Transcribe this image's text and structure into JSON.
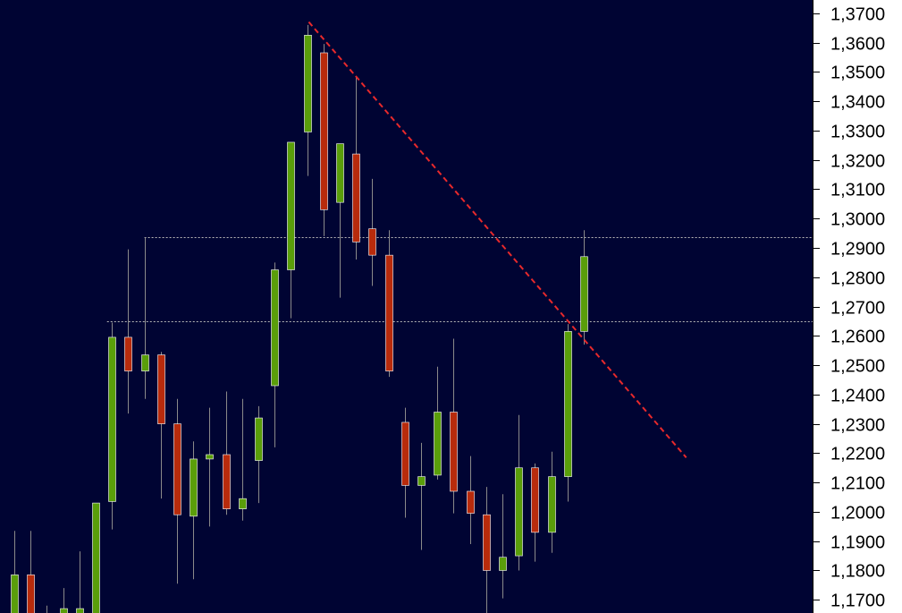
{
  "chart_data": {
    "type": "candlestick",
    "title": "",
    "xlabel": "",
    "ylabel": "",
    "ylim": [
      1.1655,
      1.3745
    ],
    "y_ticks": [
      "1,3700",
      "1,3600",
      "1,3500",
      "1,3400",
      "1,3300",
      "1,3200",
      "1,3100",
      "1,3000",
      "1,2900",
      "1,2800",
      "1,2700",
      "1,2600",
      "1,2500",
      "1,2400",
      "1,2300",
      "1,2200",
      "1,2100",
      "1,2000",
      "1,1900",
      "1,1800",
      "1,1700"
    ],
    "y_tick_values": [
      1.37,
      1.36,
      1.35,
      1.34,
      1.33,
      1.32,
      1.31,
      1.3,
      1.29,
      1.28,
      1.27,
      1.26,
      1.25,
      1.24,
      1.23,
      1.22,
      1.21,
      1.2,
      1.19,
      1.18,
      1.17
    ],
    "grid": false,
    "colors": {
      "background": "#000433",
      "bull": "#5a9e0a",
      "bear": "#b82b0c",
      "wick": "#8a8a8a",
      "trendline": "#e8292b",
      "level_line": "#b8b8b8",
      "axis_background": "#ffffff"
    },
    "candles": [
      {
        "open": 1.1645,
        "high": 1.1935,
        "low": 1.162,
        "close": 1.1785
      },
      {
        "open": 1.1785,
        "high": 1.1935,
        "low": 1.161,
        "close": 1.164
      },
      {
        "open": 1.161,
        "high": 1.168,
        "low": 1.158,
        "close": 1.1605
      },
      {
        "open": 1.164,
        "high": 1.174,
        "low": 1.16,
        "close": 1.167
      },
      {
        "open": 1.164,
        "high": 1.1865,
        "low": 1.16,
        "close": 1.167
      },
      {
        "open": 1.165,
        "high": 1.203,
        "low": 1.163,
        "close": 1.203
      },
      {
        "open": 1.2035,
        "high": 1.2645,
        "low": 1.194,
        "close": 1.2595
      },
      {
        "open": 1.2595,
        "high": 1.2895,
        "low": 1.2335,
        "close": 1.248
      },
      {
        "open": 1.248,
        "high": 1.2935,
        "low": 1.2385,
        "close": 1.2535
      },
      {
        "open": 1.2535,
        "high": 1.2545,
        "low": 1.2045,
        "close": 1.23
      },
      {
        "open": 1.23,
        "high": 1.2385,
        "low": 1.1755,
        "close": 1.199
      },
      {
        "open": 1.1985,
        "high": 1.224,
        "low": 1.177,
        "close": 1.218
      },
      {
        "open": 1.218,
        "high": 1.2355,
        "low": 1.195,
        "close": 1.2195
      },
      {
        "open": 1.2195,
        "high": 1.241,
        "low": 1.199,
        "close": 1.201
      },
      {
        "open": 1.201,
        "high": 1.2385,
        "low": 1.197,
        "close": 1.2045
      },
      {
        "open": 1.2175,
        "high": 1.236,
        "low": 1.203,
        "close": 1.232
      },
      {
        "open": 1.243,
        "high": 1.285,
        "low": 1.222,
        "close": 1.2825
      },
      {
        "open": 1.2825,
        "high": 1.3255,
        "low": 1.266,
        "close": 1.326
      },
      {
        "open": 1.3295,
        "high": 1.366,
        "low": 1.3145,
        "close": 1.3625
      },
      {
        "open": 1.3565,
        "high": 1.3595,
        "low": 1.294,
        "close": 1.303
      },
      {
        "open": 1.3055,
        "high": 1.3255,
        "low": 1.273,
        "close": 1.3255
      },
      {
        "open": 1.322,
        "high": 1.3485,
        "low": 1.286,
        "close": 1.292
      },
      {
        "open": 1.2965,
        "high": 1.3135,
        "low": 1.277,
        "close": 1.2875
      },
      {
        "open": 1.2875,
        "high": 1.296,
        "low": 1.246,
        "close": 1.248
      },
      {
        "open": 1.2305,
        "high": 1.2355,
        "low": 1.198,
        "close": 1.209
      },
      {
        "open": 1.209,
        "high": 1.2235,
        "low": 1.187,
        "close": 1.212
      },
      {
        "open": 1.2125,
        "high": 1.2495,
        "low": 1.211,
        "close": 1.234
      },
      {
        "open": 1.234,
        "high": 1.259,
        "low": 1.1995,
        "close": 1.207
      },
      {
        "open": 1.207,
        "high": 1.219,
        "low": 1.189,
        "close": 1.1995
      },
      {
        "open": 1.199,
        "high": 1.2085,
        "low": 1.161,
        "close": 1.18
      },
      {
        "open": 1.18,
        "high": 1.206,
        "low": 1.1705,
        "close": 1.1845
      },
      {
        "open": 1.185,
        "high": 1.233,
        "low": 1.18,
        "close": 1.215
      },
      {
        "open": 1.215,
        "high": 1.2165,
        "low": 1.183,
        "close": 1.193
      },
      {
        "open": 1.193,
        "high": 1.2205,
        "low": 1.186,
        "close": 1.212
      },
      {
        "open": 1.212,
        "high": 1.264,
        "low": 1.2035,
        "close": 1.2615
      },
      {
        "open": 1.2615,
        "high": 1.296,
        "low": 1.257,
        "close": 1.287
      }
    ],
    "trendline": {
      "from": {
        "index": 18.1,
        "value": 1.367
      },
      "to": {
        "index": 41.3,
        "value": 1.2185
      }
    },
    "levels": [
      {
        "value": 1.2935,
        "start_index": 8
      },
      {
        "value": 1.265,
        "start_index": 5.7
      }
    ]
  }
}
